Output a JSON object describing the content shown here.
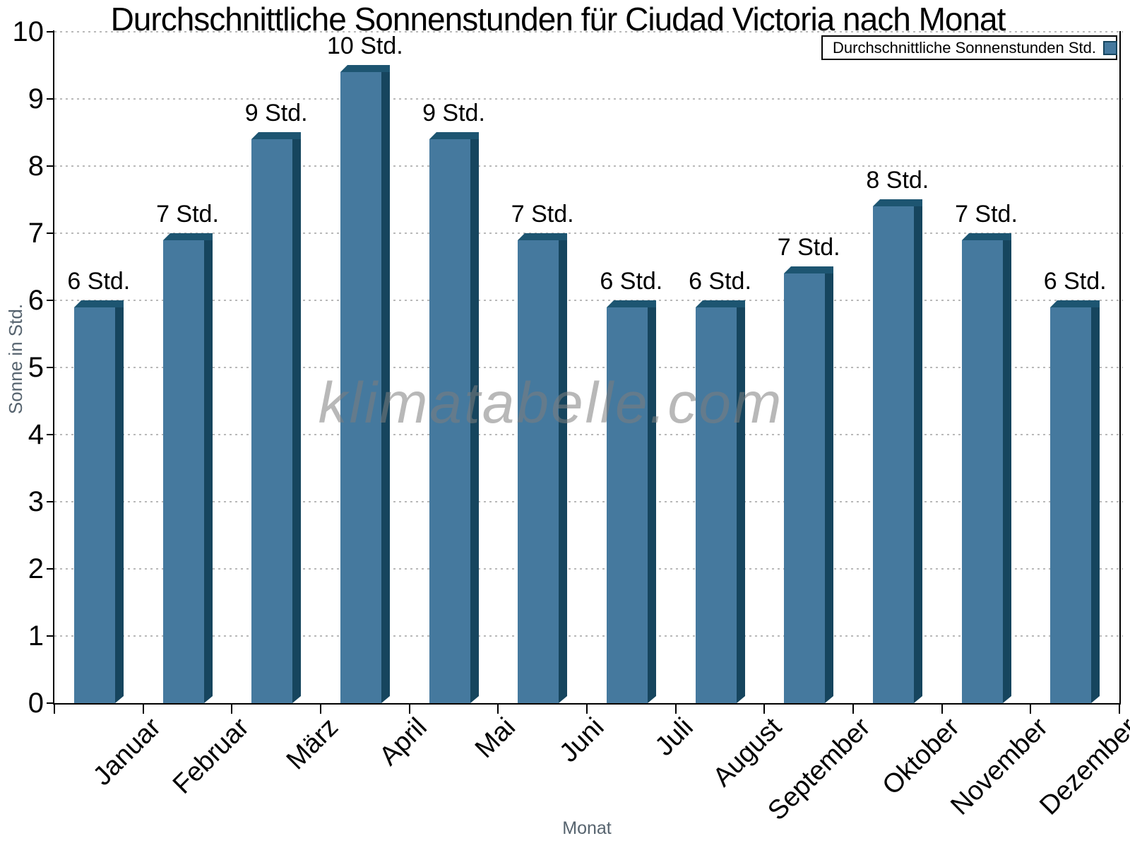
{
  "title": "Durchschnittliche Sonnenstunden für Ciudad Victoria nach Monat",
  "watermark": "klimatabelle.com",
  "legend": {
    "label": "Durchschnittliche Sonnenstunden Std."
  },
  "colors": {
    "bar_face": "#45799e",
    "bar_bevel_top": "#1d5571",
    "bar_bevel_side": "#16455e",
    "grid": "#b9b9b9",
    "axis": "#000000",
    "axis_title_text": "#57646f",
    "watermark_text": "#7d7d7d"
  },
  "chart_data": {
    "type": "bar",
    "title": "Durchschnittliche Sonnenstunden für Ciudad Victoria nach Monat",
    "categories": [
      "Januar",
      "Februar",
      "März",
      "April",
      "Mai",
      "Juni",
      "Juli",
      "August",
      "September",
      "Oktober",
      "November",
      "Dezember"
    ],
    "values": [
      6,
      7,
      8.5,
      9.5,
      8.5,
      7,
      6,
      6,
      6.5,
      7.5,
      7,
      6
    ],
    "bar_labels": [
      "6 Std.",
      "7 Std.",
      "9 Std.",
      "10 Std.",
      "9 Std.",
      "7 Std.",
      "6 Std.",
      "6 Std.",
      "7 Std.",
      "8 Std.",
      "7 Std.",
      "6 Std."
    ],
    "xlabel": "Monat",
    "ylabel": "Sonne in Std.",
    "ylim": [
      0,
      10
    ],
    "y_ticks": [
      0,
      1,
      2,
      3,
      4,
      5,
      6,
      7,
      8,
      9,
      10
    ],
    "grid": "horizontal-dotted",
    "legend_position": "top-right",
    "series_name": "Durchschnittliche Sonnenstunden Std."
  }
}
